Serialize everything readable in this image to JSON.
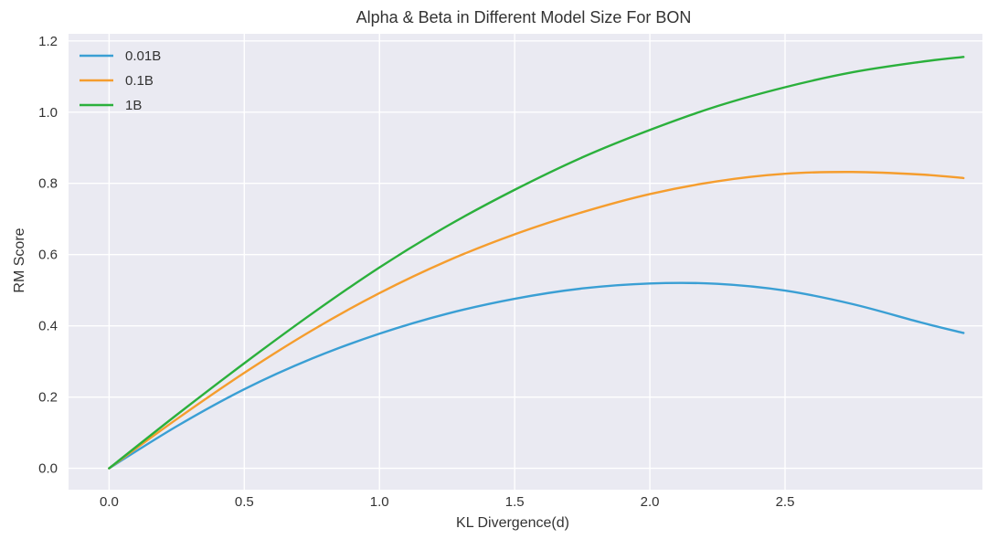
{
  "chart_data": {
    "type": "line",
    "title": "Alpha & Beta in Different Model Size For BON",
    "xlabel": "KL Divergence(d)",
    "ylabel": "RM Score",
    "xlim": [
      -0.15,
      3.23
    ],
    "ylim": [
      -0.06,
      1.22
    ],
    "x_ticks": [
      0.0,
      0.5,
      1.0,
      1.5,
      2.0,
      2.5
    ],
    "y_ticks": [
      0.0,
      0.2,
      0.4,
      0.6,
      0.8,
      1.0,
      1.2
    ],
    "x_tick_labels": [
      "0.0",
      "0.5",
      "1.0",
      "1.5",
      "2.0",
      "2.5"
    ],
    "y_tick_labels": [
      "0.0",
      "0.2",
      "0.4",
      "0.6",
      "0.8",
      "1.0",
      "1.2"
    ],
    "grid": true,
    "legend_position": "top-left",
    "background": "#eaeaf2",
    "x": [
      0.0,
      0.25,
      0.5,
      0.75,
      1.0,
      1.25,
      1.5,
      1.75,
      2.0,
      2.25,
      2.5,
      2.75,
      3.0,
      3.16
    ],
    "series": [
      {
        "name": "0.01B",
        "color": "#3a9fd4",
        "values": [
          0.0,
          0.118,
          0.222,
          0.308,
          0.378,
          0.434,
          0.476,
          0.505,
          0.519,
          0.518,
          0.499,
          0.461,
          0.41,
          0.38
        ]
      },
      {
        "name": "0.1B",
        "color": "#f59d2e",
        "values": [
          0.0,
          0.138,
          0.268,
          0.387,
          0.492,
          0.582,
          0.657,
          0.719,
          0.77,
          0.806,
          0.827,
          0.832,
          0.825,
          0.815
        ]
      },
      {
        "name": "1B",
        "color": "#2bb03c",
        "values": [
          0.0,
          0.15,
          0.295,
          0.434,
          0.564,
          0.68,
          0.782,
          0.873,
          0.95,
          1.017,
          1.07,
          1.112,
          1.141,
          1.155
        ]
      }
    ]
  }
}
